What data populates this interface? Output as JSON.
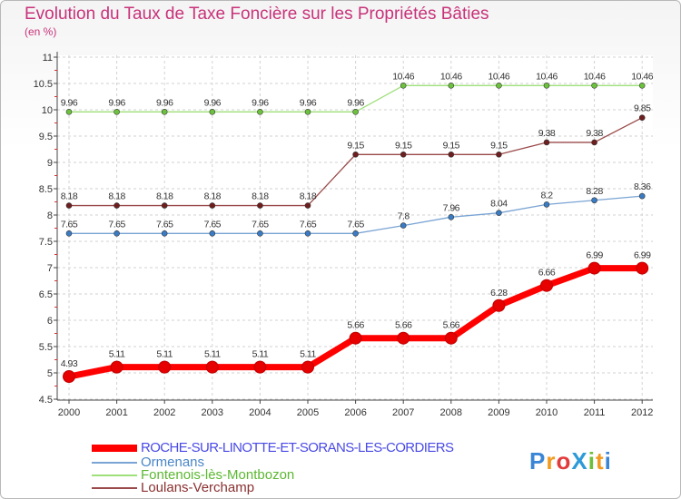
{
  "header": {
    "title": "Evolution du Taux de Taxe Foncière sur les Propriétés Bâties",
    "unit": "(en %)"
  },
  "logo": {
    "text": "ProXiti",
    "letter_colors": [
      "#3a86d6",
      "#f29a1f",
      "#e23b3b",
      "#2e9ad8",
      "#6cbf3a",
      "#f29a1f",
      "#3a86d6"
    ]
  },
  "chart_data": {
    "type": "line",
    "title": "Evolution du Taux de Taxe Foncière sur les Propriétés Bâties",
    "ylabel": "(en %)",
    "xlabel": "",
    "x": [
      "2000",
      "2001",
      "2002",
      "2003",
      "2004",
      "2005",
      "2006",
      "2007",
      "2008",
      "2009",
      "2010",
      "2011",
      "2012"
    ],
    "yticks": [
      "4.5",
      "5",
      "5.5",
      "6",
      "6.5",
      "7",
      "7.5",
      "8",
      "8.5",
      "9",
      "9.5",
      "10",
      "10.5",
      "11"
    ],
    "ylim": [
      4.5,
      11
    ],
    "grid": true,
    "series": [
      {
        "name": "ROCHE-SUR-LINOTTE-ET-SORANS-LES-CORDIERS",
        "values": [
          4.93,
          5.11,
          5.11,
          5.11,
          5.11,
          5.11,
          5.66,
          5.66,
          5.66,
          6.28,
          6.66,
          6.99,
          6.99
        ],
        "labels": [
          "4.93",
          "5.11",
          "5.11",
          "5.11",
          "5.11",
          "5.11",
          "5.66",
          "5.66",
          "5.66",
          "6.28",
          "6.66",
          "6.99",
          "6.99"
        ],
        "color": "#ff0000",
        "marker_color": "#e60000",
        "legend_color": "#4a4ae6",
        "thick": true
      },
      {
        "name": "Ormenans",
        "values": [
          7.65,
          7.65,
          7.65,
          7.65,
          7.65,
          7.65,
          7.65,
          7.8,
          7.96,
          8.04,
          8.2,
          8.28,
          8.36
        ],
        "labels": [
          "7.65",
          "7.65",
          "7.65",
          "7.65",
          "7.65",
          "7.65",
          "7.65",
          "7.8",
          "7.96",
          "8.04",
          "8.2",
          "8.28",
          "8.36"
        ],
        "color": "#7aa4d4",
        "marker_color": "#3a7cc4",
        "legend_color": "#4a86c8",
        "thick": false
      },
      {
        "name": "Fontenois-lès-Montbozon",
        "values": [
          9.96,
          9.96,
          9.96,
          9.96,
          9.96,
          9.96,
          9.96,
          10.46,
          10.46,
          10.46,
          10.46,
          10.46,
          10.46
        ],
        "labels": [
          "9.96",
          "9.96",
          "9.96",
          "9.96",
          "9.96",
          "9.96",
          "9.96",
          "10.46",
          "10.46",
          "10.46",
          "10.46",
          "10.46",
          "10.46"
        ],
        "color": "#9ee07a",
        "marker_color": "#6cc23c",
        "legend_color": "#5cb832",
        "thick": false
      },
      {
        "name": "Loulans-Verchamp",
        "values": [
          8.18,
          8.18,
          8.18,
          8.18,
          8.18,
          8.18,
          9.15,
          9.15,
          9.15,
          9.15,
          9.38,
          9.38,
          9.85
        ],
        "labels": [
          "8.18",
          "8.18",
          "8.18",
          "8.18",
          "8.18",
          "8.18",
          "9.15",
          "9.15",
          "9.15",
          "9.15",
          "9.38",
          "9.38",
          "9.85"
        ],
        "color": "#9a4a4a",
        "marker_color": "#6e1e1e",
        "legend_color": "#8a3030",
        "thick": false
      }
    ]
  }
}
